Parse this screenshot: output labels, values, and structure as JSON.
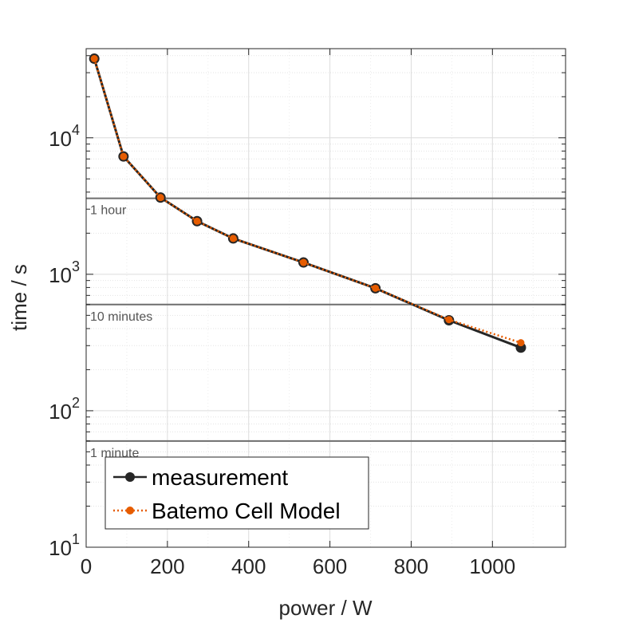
{
  "chart_data": {
    "type": "line",
    "title": "",
    "xlabel": "power / W",
    "ylabel": "time / s",
    "xlim": [
      0,
      1180
    ],
    "ylim": [
      10,
      45000
    ],
    "y_scale": "log",
    "grid": true,
    "legend_position": "bottom-left",
    "x_ticks": [
      0,
      200,
      400,
      600,
      800,
      1000
    ],
    "x_tick_labels": [
      "0",
      "200",
      "400",
      "600",
      "800",
      "1000"
    ],
    "y_ticks": [
      {
        "value": 10,
        "base": "10",
        "exp": "1"
      },
      {
        "value": 100,
        "base": "10",
        "exp": "2"
      },
      {
        "value": 1000,
        "base": "10",
        "exp": "3"
      },
      {
        "value": 10000,
        "base": "10",
        "exp": "4"
      }
    ],
    "reference_lines": [
      {
        "value": 3600,
        "label": "1 hour"
      },
      {
        "value": 600,
        "label": "10 minutes"
      },
      {
        "value": 60,
        "label": "1 minute"
      }
    ],
    "series": [
      {
        "name": "measurement",
        "color": "#262626",
        "style": "solid",
        "x": [
          20,
          92,
          183,
          273,
          362,
          535,
          712,
          893,
          1070
        ],
        "y": [
          38000,
          7300,
          3650,
          2450,
          1830,
          1220,
          790,
          460,
          290
        ]
      },
      {
        "name": "Batemo Cell Model",
        "color": "#e65c00",
        "style": "dotted",
        "x": [
          20,
          92,
          183,
          273,
          362,
          535,
          712,
          893,
          1070
        ],
        "y": [
          38000,
          7300,
          3650,
          2450,
          1830,
          1220,
          790,
          465,
          315
        ]
      }
    ]
  }
}
